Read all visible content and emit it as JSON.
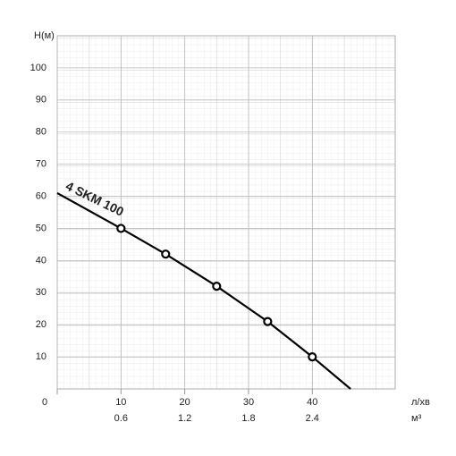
{
  "chart_data": {
    "type": "line",
    "y_label": "H(м)",
    "x_label": "л/хв",
    "x2_label": "м³",
    "xlim": [
      0,
      53
    ],
    "ylim": [
      0,
      110
    ],
    "xticks": [
      0,
      10,
      20,
      30,
      40
    ],
    "x2ticks": [
      {
        "value": 10,
        "label": "0.6"
      },
      {
        "value": 20,
        "label": "1.2"
      },
      {
        "value": 30,
        "label": "1.8"
      },
      {
        "value": 40,
        "label": "2.4"
      }
    ],
    "yticks": [
      10,
      20,
      30,
      40,
      50,
      60,
      70,
      80,
      90,
      100
    ],
    "grid": true,
    "series": [
      {
        "name": "4 SKM 100",
        "color": "#000000",
        "x": [
          0,
          10,
          17,
          25,
          33,
          40,
          46
        ],
        "values": [
          61,
          50,
          42,
          32,
          21,
          10,
          0
        ],
        "markers": [
          false,
          true,
          true,
          true,
          true,
          true,
          false
        ]
      }
    ]
  }
}
